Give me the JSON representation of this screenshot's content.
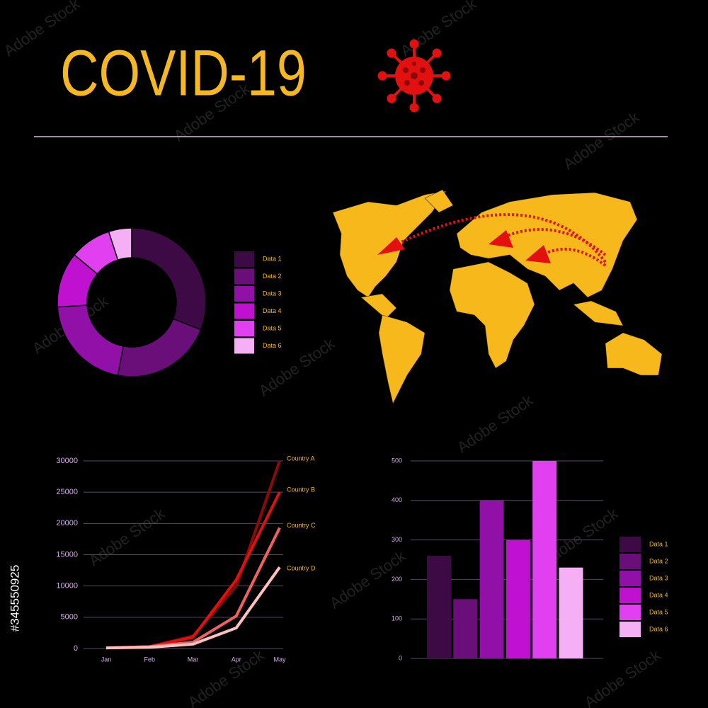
{
  "title": "COVID-19",
  "watermark": "Adobe Stock",
  "stock_id": "#345550925",
  "chart_data": [
    {
      "type": "pie",
      "categories": [
        "Data 1",
        "Data 2",
        "Data 3",
        "Data 4",
        "Data 5",
        "Data 6"
      ],
      "values": [
        31,
        22,
        21,
        12,
        9,
        5
      ],
      "colors": [
        "#3d0a45",
        "#6a0f7a",
        "#9010a8",
        "#c010d0",
        "#e040f0",
        "#f5b0f5"
      ]
    },
    {
      "type": "line",
      "categories": [
        "Jan",
        "Feb",
        "Mar",
        "Apr",
        "May"
      ],
      "series": [
        {
          "name": "Country A",
          "color": "#8b0a0a",
          "values": [
            100,
            300,
            2000,
            10000,
            30000
          ]
        },
        {
          "name": "Country B",
          "color": "#e01010",
          "values": [
            100,
            300,
            1800,
            11000,
            25000
          ]
        },
        {
          "name": "Country C",
          "color": "#f06060",
          "values": [
            100,
            300,
            1000,
            5200,
            19300
          ]
        },
        {
          "name": "Country D",
          "color": "#ffc0c0",
          "values": [
            100,
            200,
            700,
            3300,
            13000
          ]
        }
      ],
      "ylim": [
        0,
        30000
      ],
      "yticks": [
        0,
        5000,
        10000,
        15000,
        20000,
        25000,
        30000
      ],
      "grid": true
    },
    {
      "type": "bar",
      "categories": [
        "Data 1",
        "Data 2",
        "Data 3",
        "Data 4",
        "Data 5",
        "Data 6"
      ],
      "values": [
        260,
        150,
        400,
        300,
        500,
        230
      ],
      "colors": [
        "#3d0a45",
        "#6a0f7a",
        "#9010a8",
        "#c010d0",
        "#e040f0",
        "#f5b0f5"
      ],
      "ylim": [
        0,
        500
      ],
      "yticks": [
        0,
        100,
        200,
        300,
        400,
        500
      ],
      "grid": true
    }
  ]
}
